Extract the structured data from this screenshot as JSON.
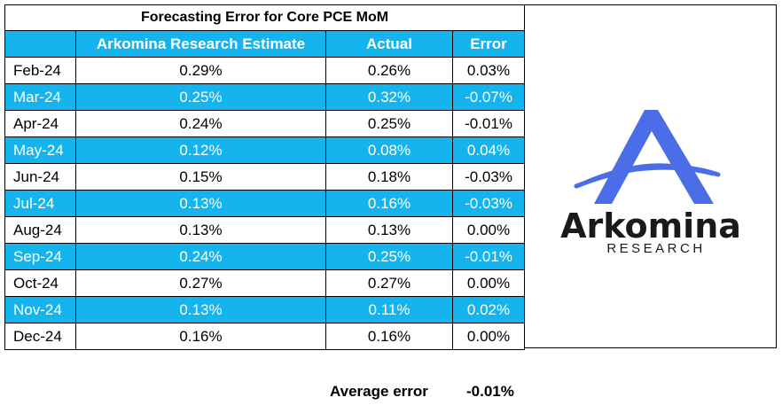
{
  "chart_data": {
    "type": "table",
    "title": "Forecasting Error for Core PCE MoM",
    "columns": [
      "",
      "Arkomina Research Estimate",
      "Actual",
      "Error"
    ],
    "rows": [
      {
        "month": "Feb-24",
        "estimate": "0.29%",
        "actual": "0.26%",
        "error": "0.03%"
      },
      {
        "month": "Mar-24",
        "estimate": "0.25%",
        "actual": "0.32%",
        "error": "-0.07%"
      },
      {
        "month": "Apr-24",
        "estimate": "0.24%",
        "actual": "0.25%",
        "error": "-0.01%"
      },
      {
        "month": "May-24",
        "estimate": "0.12%",
        "actual": "0.08%",
        "error": "0.04%"
      },
      {
        "month": "Jun-24",
        "estimate": "0.15%",
        "actual": "0.18%",
        "error": "-0.03%"
      },
      {
        "month": "Jul-24",
        "estimate": "0.13%",
        "actual": "0.16%",
        "error": "-0.03%"
      },
      {
        "month": "Aug-24",
        "estimate": "0.13%",
        "actual": "0.13%",
        "error": "0.00%"
      },
      {
        "month": "Sep-24",
        "estimate": "0.24%",
        "actual": "0.25%",
        "error": "-0.01%"
      },
      {
        "month": "Oct-24",
        "estimate": "0.27%",
        "actual": "0.27%",
        "error": "0.00%"
      },
      {
        "month": "Nov-24",
        "estimate": "0.13%",
        "actual": "0.11%",
        "error": "0.02%"
      },
      {
        "month": "Dec-24",
        "estimate": "0.16%",
        "actual": "0.16%",
        "error": "0.00%"
      }
    ],
    "average": {
      "label": "Average error",
      "value": "-0.01%"
    }
  },
  "logo": {
    "name": "Arkomina",
    "tagline": "RESEARCH"
  },
  "colors": {
    "accent": "#14b4ee",
    "logo_blue": "#4b6ee8",
    "logo_dark": "#1a1a1a"
  }
}
